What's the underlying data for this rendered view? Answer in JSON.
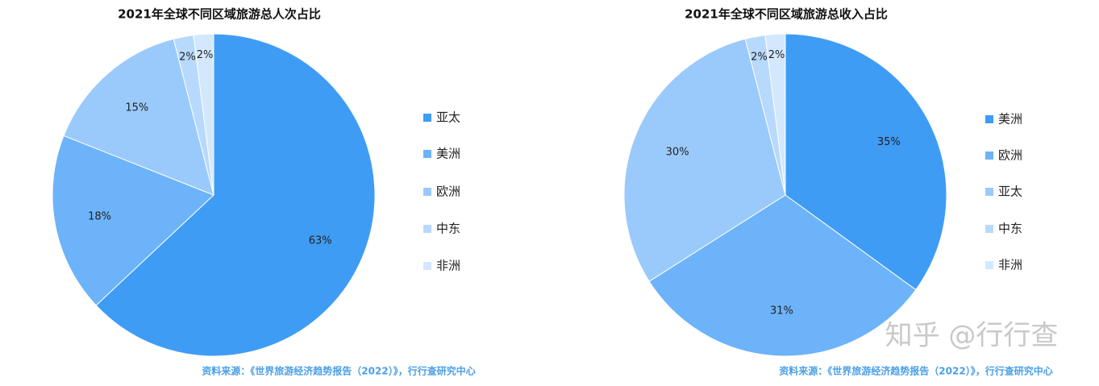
{
  "chart_data": [
    {
      "type": "pie",
      "title": "2021年全球不同区域旅游总人次占比",
      "categories": [
        "亚太",
        "美洲",
        "欧洲",
        "中东",
        "非洲"
      ],
      "values": [
        63,
        18,
        15,
        2,
        2
      ],
      "value_labels": [
        "63%",
        "18%",
        "15%",
        "2%",
        "2%"
      ],
      "colors": [
        "#3f9cf5",
        "#6cb3fa",
        "#9acafb",
        "#b7d9fc",
        "#d3e8fd"
      ],
      "source": "资料来源：《世界旅游经济趋势报告（2022）》，行行查研究中心"
    },
    {
      "type": "pie",
      "title": "2021年全球不同区域旅游总收入占比",
      "categories": [
        "美洲",
        "欧洲",
        "亚太",
        "中东",
        "非洲"
      ],
      "values": [
        35,
        31,
        30,
        2,
        2
      ],
      "value_labels": [
        "35%",
        "31%",
        "30%",
        "2%",
        "2%"
      ],
      "colors": [
        "#3f9cf5",
        "#6cb3fa",
        "#9acafb",
        "#b7d9fc",
        "#d3e8fd"
      ],
      "source": "资料来源：《世界旅游经济趋势报告（2022）》，行行查研究中心"
    }
  ],
  "watermark": "知乎 @行行查"
}
